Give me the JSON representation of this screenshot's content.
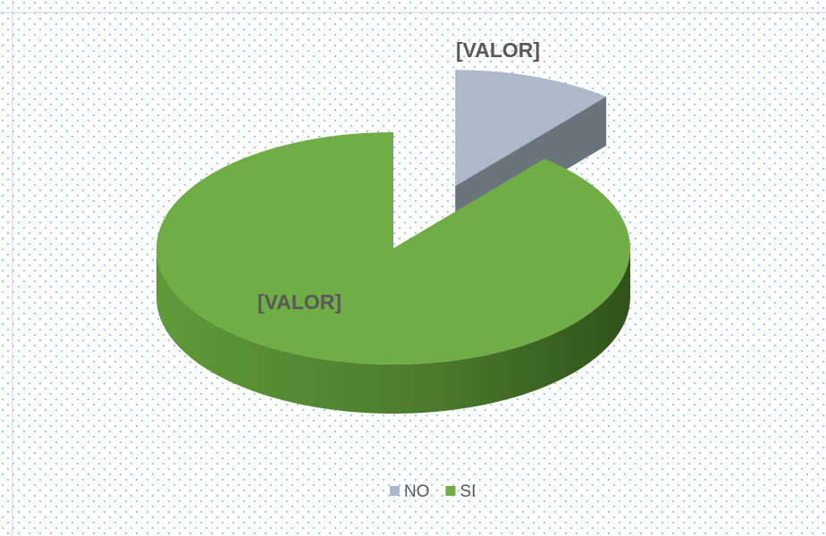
{
  "chart_data": {
    "type": "pie3d",
    "categories": [
      "NO",
      "SI"
    ],
    "values": [
      11,
      89
    ],
    "value_labels": [
      "[VALOR]",
      "[VALOR]"
    ],
    "colors": [
      "#adb9ca",
      "#70ad47"
    ],
    "legend": "bottom"
  }
}
